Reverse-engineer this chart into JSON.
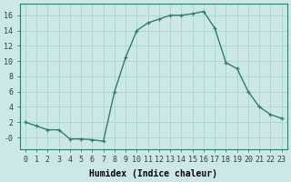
{
  "x": [
    0,
    1,
    2,
    3,
    4,
    5,
    6,
    7,
    8,
    9,
    10,
    11,
    12,
    13,
    14,
    15,
    16,
    17,
    18,
    19,
    20,
    21,
    22,
    23
  ],
  "y": [
    2,
    1.5,
    1,
    1,
    -0.2,
    -0.2,
    -0.3,
    -0.5,
    6,
    10.5,
    14,
    15,
    15.5,
    16,
    16,
    16.2,
    16.5,
    14.3,
    9.8,
    9,
    6,
    4,
    3,
    2.5
  ],
  "line_color": "#2e7d6e",
  "marker": "+",
  "bg_color": "#cce8e6",
  "grid_color": "#aad4d2",
  "xlabel": "Humidex (Indice chaleur)",
  "xlim": [
    -0.5,
    23.5
  ],
  "ylim": [
    -1.5,
    17.5
  ],
  "yticks": [
    0,
    2,
    4,
    6,
    8,
    10,
    12,
    14,
    16
  ],
  "ytick_labels": [
    "-0",
    "2",
    "4",
    "6",
    "8",
    "10",
    "12",
    "14",
    "16"
  ],
  "xticks": [
    0,
    1,
    2,
    3,
    4,
    5,
    6,
    7,
    8,
    9,
    10,
    11,
    12,
    13,
    14,
    15,
    16,
    17,
    18,
    19,
    20,
    21,
    22,
    23
  ],
  "axis_fontsize": 7,
  "tick_fontsize": 6
}
